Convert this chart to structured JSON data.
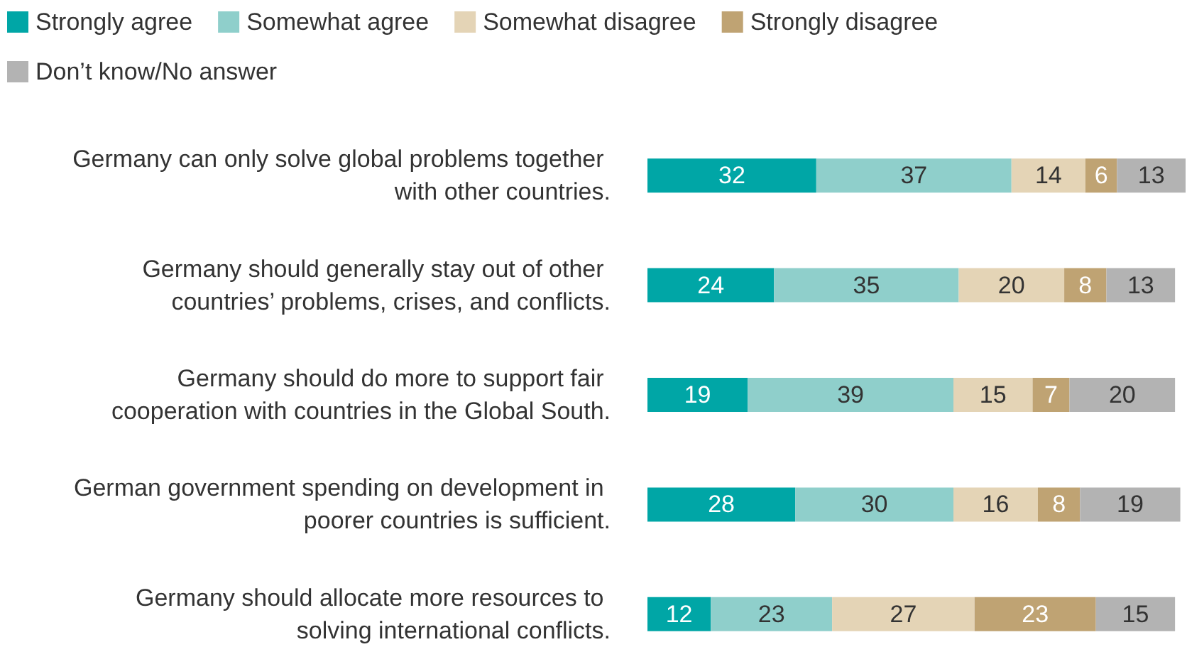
{
  "chart_data": {
    "type": "bar",
    "orientation": "horizontal",
    "stacked": true,
    "data_labels": true,
    "legend": "top left",
    "categories": [
      "Germany can only solve global problems together with other countries.",
      "Germany should generally stay out of other countries’ problems, crises, and conflicts.",
      "Germany should do more to support fair cooperation with countries in the Global South.",
      "German government spending on development in poorer countries is sufficient.",
      "Germany should allocate more resources to solving international conflicts."
    ],
    "series": [
      {
        "name": "Strongly agree",
        "color": "#00a6a6",
        "values": [
          32,
          24,
          19,
          28,
          12
        ]
      },
      {
        "name": "Somewhat agree",
        "color": "#8fcfcb",
        "values": [
          37,
          35,
          39,
          30,
          23
        ]
      },
      {
        "name": "Somewhat disagree",
        "color": "#e4d4b6",
        "values": [
          14,
          20,
          15,
          16,
          27
        ]
      },
      {
        "name": "Strongly disagree",
        "color": "#bfa373",
        "values": [
          6,
          8,
          7,
          8,
          23
        ]
      },
      {
        "name": "Don’t know/No answer",
        "color": "#b3b3b3",
        "values": [
          13,
          13,
          20,
          19,
          15
        ]
      }
    ]
  }
}
